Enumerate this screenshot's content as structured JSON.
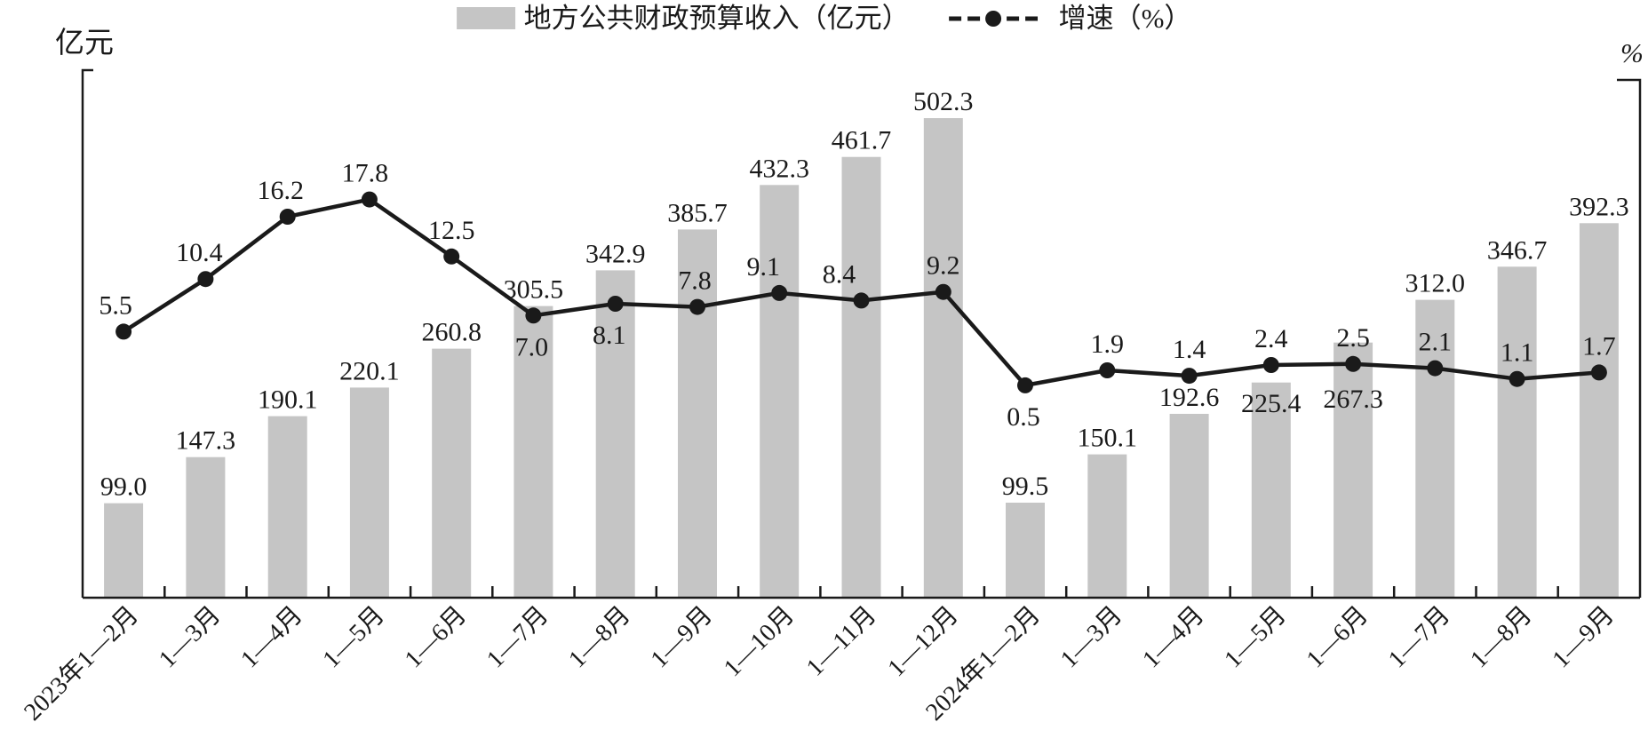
{
  "legend": {
    "bar_label": "地方公共财政预算收入（亿元）",
    "line_label": "增速（%）"
  },
  "axes": {
    "left_unit": "亿元",
    "right_unit": "%"
  },
  "chart_data": {
    "type": "bar+line",
    "title": "",
    "categories": [
      "2023年1—2月",
      "1—3月",
      "1—4月",
      "1—5月",
      "1—6月",
      "1—7月",
      "1—8月",
      "1—9月",
      "1—10月",
      "1—11月",
      "1—12月",
      "2024年1—2月",
      "1—3月",
      "1—4月",
      "1—5月",
      "1—6月",
      "1—7月",
      "1—8月",
      "1—9月"
    ],
    "series": [
      {
        "name": "地方公共财政预算收入（亿元）",
        "type": "bar",
        "axis": "left",
        "color": "#c5c5c5",
        "values": [
          99.0,
          147.3,
          190.1,
          220.1,
          260.8,
          305.5,
          342.9,
          385.7,
          432.3,
          461.7,
          502.3,
          99.5,
          150.1,
          192.6,
          225.4,
          267.3,
          312.0,
          346.7,
          392.3
        ],
        "value_labels": [
          "99.0",
          "147.3",
          "190.1",
          "220.1",
          "260.8",
          "305.5",
          "342.9",
          "385.7",
          "432.3",
          "461.7",
          "502.3",
          "99.5",
          "150.1",
          "192.6",
          "225.4",
          "267.3",
          "312.0",
          "346.7",
          "392.3"
        ]
      },
      {
        "name": "增速（%）",
        "type": "line",
        "axis": "right",
        "color": "#1a1a1a",
        "marker": "filled-circle",
        "values": [
          5.5,
          10.4,
          16.2,
          17.8,
          12.5,
          7.0,
          8.1,
          7.8,
          9.1,
          8.4,
          9.2,
          0.5,
          1.9,
          1.4,
          2.4,
          2.5,
          2.1,
          1.1,
          1.7
        ],
        "value_labels": [
          "5.5",
          "10.4",
          "16.2",
          "17.8",
          "12.5",
          "7.0",
          "8.1",
          "7.8",
          "9.1",
          "8.4",
          "9.2",
          "0.5",
          "1.9",
          "1.4",
          "2.4",
          "2.5",
          "2.1",
          "1.1",
          "1.7"
        ],
        "label_positions": [
          "above",
          "above",
          "above",
          "above",
          "above",
          "below",
          "below",
          "above",
          "above",
          "above",
          "above",
          "below",
          "above",
          "above",
          "above",
          "above",
          "above",
          "above",
          "above"
        ]
      }
    ],
    "left_axis": {
      "unit": "亿元",
      "min": 0,
      "max_estimate": 552,
      "tick_labels_shown": false
    },
    "right_axis": {
      "unit": "%",
      "range_estimate": [
        -19.3,
        29.9
      ],
      "tick_labels_shown": false
    },
    "legend_position": "top-center",
    "grid": false,
    "bar_value_labels": true,
    "line_value_labels": true,
    "bar_label_inside_indices": [
      14,
      15
    ]
  }
}
